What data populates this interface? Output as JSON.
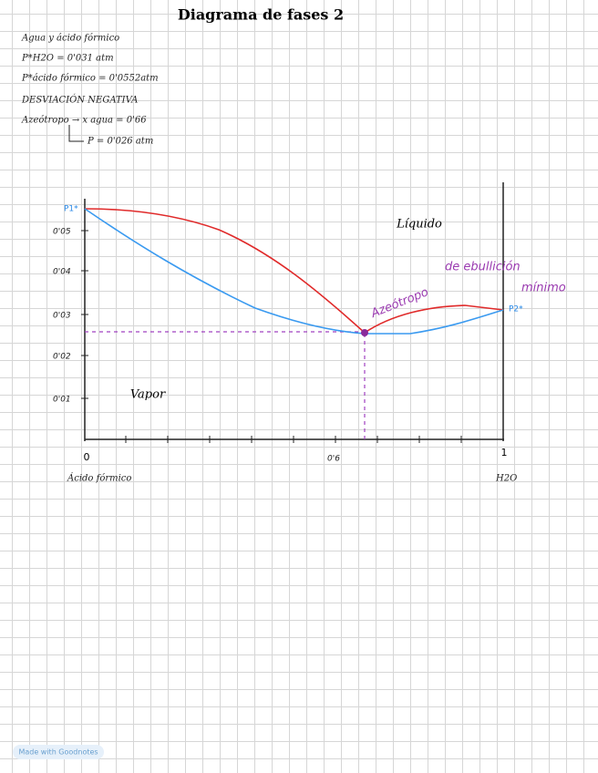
{
  "header": {
    "title": "Diagrama de fases 2"
  },
  "notes": [
    "Agua y ácido fórmico",
    "P*H2O = 0'031 atm",
    "P*ácido fórmico = 0'0552atm",
    "DESVIACIÓN NEGATIVA",
    "Azeótropo → x agua = 0'66",
    "P = 0'026 atm"
  ],
  "diagram": {
    "y_labels": [
      "P1*",
      "0'05",
      "0'04",
      "0'03",
      "0'02",
      "0'01"
    ],
    "x_labels": [
      "0",
      "0'6",
      "1"
    ],
    "x_ends": [
      "Ácido fórmico",
      "H2O"
    ],
    "right_label": "P2*",
    "regions": [
      "Líquido",
      "Vapor"
    ],
    "annotation": [
      "Azeótropo",
      "de ebullición",
      "mínimo"
    ]
  },
  "footer": "Made with Goodnotes"
}
